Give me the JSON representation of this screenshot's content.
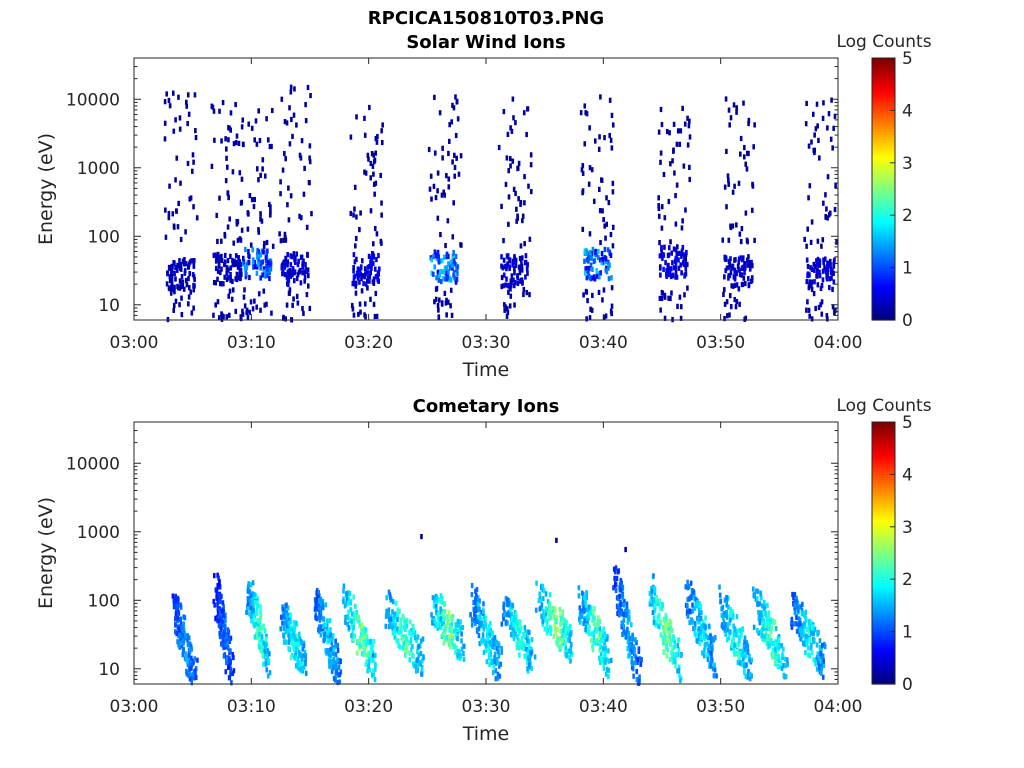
{
  "figure_title": "RPCICA150810T03.PNG",
  "colorbar": {
    "label": "Log Counts",
    "min": 0,
    "max": 5,
    "ticks": [
      "0",
      "1",
      "2",
      "3",
      "4",
      "5"
    ],
    "colormap": "jet"
  },
  "chart_data": [
    {
      "type": "heatmap",
      "title": "Solar Wind Ions",
      "xlabel": "Time",
      "ylabel": "Energy (eV)",
      "x_range": [
        "03:00",
        "04:00"
      ],
      "x_ticks": [
        "03:00",
        "03:10",
        "03:20",
        "03:30",
        "03:40",
        "03:50",
        "04:00"
      ],
      "y_scale": "log",
      "y_range": [
        6,
        40000
      ],
      "y_ticks": [
        "10",
        "100",
        "1000",
        "10000"
      ],
      "y_tick_values": [
        10,
        100,
        1000,
        10000
      ],
      "bursts": [
        {
          "center_min": 4.0,
          "low_energy": 25,
          "low_log_counts": 0.3,
          "scatter_max_energy": 13000
        },
        {
          "center_min": 8.0,
          "low_energy": 30,
          "low_log_counts": 0.3,
          "scatter_max_energy": 9000
        },
        {
          "center_min": 10.5,
          "low_energy": 35,
          "low_log_counts": 1.1,
          "scatter_max_energy": 7000
        },
        {
          "center_min": 13.8,
          "low_energy": 30,
          "low_log_counts": 0.4,
          "scatter_max_energy": 15000
        },
        {
          "center_min": 19.8,
          "low_energy": 30,
          "low_log_counts": 0.5,
          "scatter_max_energy": 9000
        },
        {
          "center_min": 26.5,
          "low_energy": 32,
          "low_log_counts": 1.2,
          "scatter_max_energy": 11000
        },
        {
          "center_min": 32.5,
          "low_energy": 28,
          "low_log_counts": 0.4,
          "scatter_max_energy": 11000
        },
        {
          "center_min": 39.5,
          "low_energy": 35,
          "low_log_counts": 1.2,
          "scatter_max_energy": 11000
        },
        {
          "center_min": 46.0,
          "low_energy": 38,
          "low_log_counts": 0.5,
          "scatter_max_energy": 8000
        },
        {
          "center_min": 51.5,
          "low_energy": 28,
          "low_log_counts": 0.4,
          "scatter_max_energy": 12000
        },
        {
          "center_min": 58.5,
          "low_energy": 25,
          "low_log_counts": 0.4,
          "scatter_max_energy": 10000
        }
      ]
    },
    {
      "type": "heatmap",
      "title": "Cometary Ions",
      "xlabel": "Time",
      "ylabel": "Energy (eV)",
      "x_range": [
        "03:00",
        "04:00"
      ],
      "x_ticks": [
        "03:00",
        "03:10",
        "03:20",
        "03:30",
        "03:40",
        "03:50",
        "04:00"
      ],
      "y_scale": "log",
      "y_range": [
        6,
        40000
      ],
      "y_ticks": [
        "10",
        "100",
        "1000",
        "10000"
      ],
      "y_tick_values": [
        10,
        100,
        1000,
        10000
      ],
      "bursts": [
        {
          "start_min": 3.5,
          "end_min": 5.2,
          "top_energy": 70,
          "bottom_energy": 7,
          "peak_log_counts": 1.6
        },
        {
          "start_min": 7.0,
          "end_min": 8.3,
          "top_energy": 130,
          "bottom_energy": 9,
          "peak_log_counts": 1.3
        },
        {
          "start_min": 9.8,
          "end_min": 11.5,
          "top_energy": 130,
          "bottom_energy": 13,
          "peak_log_counts": 2.4
        },
        {
          "start_min": 12.7,
          "end_min": 14.5,
          "top_energy": 60,
          "bottom_energy": 12,
          "peak_log_counts": 2.2
        },
        {
          "start_min": 15.5,
          "end_min": 17.5,
          "top_energy": 100,
          "bottom_energy": 9,
          "peak_log_counts": 1.8
        },
        {
          "start_min": 18.0,
          "end_min": 20.6,
          "top_energy": 90,
          "bottom_energy": 10,
          "peak_log_counts": 2.6
        },
        {
          "start_min": 21.5,
          "end_min": 24.5,
          "top_energy": 80,
          "bottom_energy": 14,
          "peak_log_counts": 2.4
        },
        {
          "start_min": 25.5,
          "end_min": 28.0,
          "top_energy": 80,
          "bottom_energy": 22,
          "peak_log_counts": 2.6
        },
        {
          "start_min": 28.8,
          "end_min": 31.2,
          "top_energy": 100,
          "bottom_energy": 10,
          "peak_log_counts": 2.0
        },
        {
          "start_min": 31.5,
          "end_min": 34.0,
          "top_energy": 80,
          "bottom_energy": 14,
          "peak_log_counts": 2.2
        },
        {
          "start_min": 34.5,
          "end_min": 37.5,
          "top_energy": 100,
          "bottom_energy": 18,
          "peak_log_counts": 2.6
        },
        {
          "start_min": 38.0,
          "end_min": 40.5,
          "top_energy": 90,
          "bottom_energy": 14,
          "peak_log_counts": 2.4
        },
        {
          "start_min": 41.0,
          "end_min": 43.2,
          "top_energy": 200,
          "bottom_energy": 7,
          "peak_log_counts": 1.6
        },
        {
          "start_min": 44.0,
          "end_min": 46.5,
          "top_energy": 130,
          "bottom_energy": 11,
          "peak_log_counts": 2.6
        },
        {
          "start_min": 47.2,
          "end_min": 49.5,
          "top_energy": 110,
          "bottom_energy": 14,
          "peak_log_counts": 2.0
        },
        {
          "start_min": 50.0,
          "end_min": 52.5,
          "top_energy": 90,
          "bottom_energy": 11,
          "peak_log_counts": 2.2
        },
        {
          "start_min": 53.0,
          "end_min": 55.5,
          "top_energy": 80,
          "bottom_energy": 13,
          "peak_log_counts": 2.4
        },
        {
          "start_min": 56.2,
          "end_min": 58.8,
          "top_energy": 70,
          "bottom_energy": 13,
          "peak_log_counts": 2.0
        }
      ],
      "isolated_points": [
        {
          "min": 24.5,
          "energy": 850,
          "log_counts": 0.2
        },
        {
          "min": 36.0,
          "energy": 750,
          "log_counts": 0.2
        },
        {
          "min": 41.9,
          "energy": 550,
          "log_counts": 0.2
        }
      ]
    }
  ]
}
